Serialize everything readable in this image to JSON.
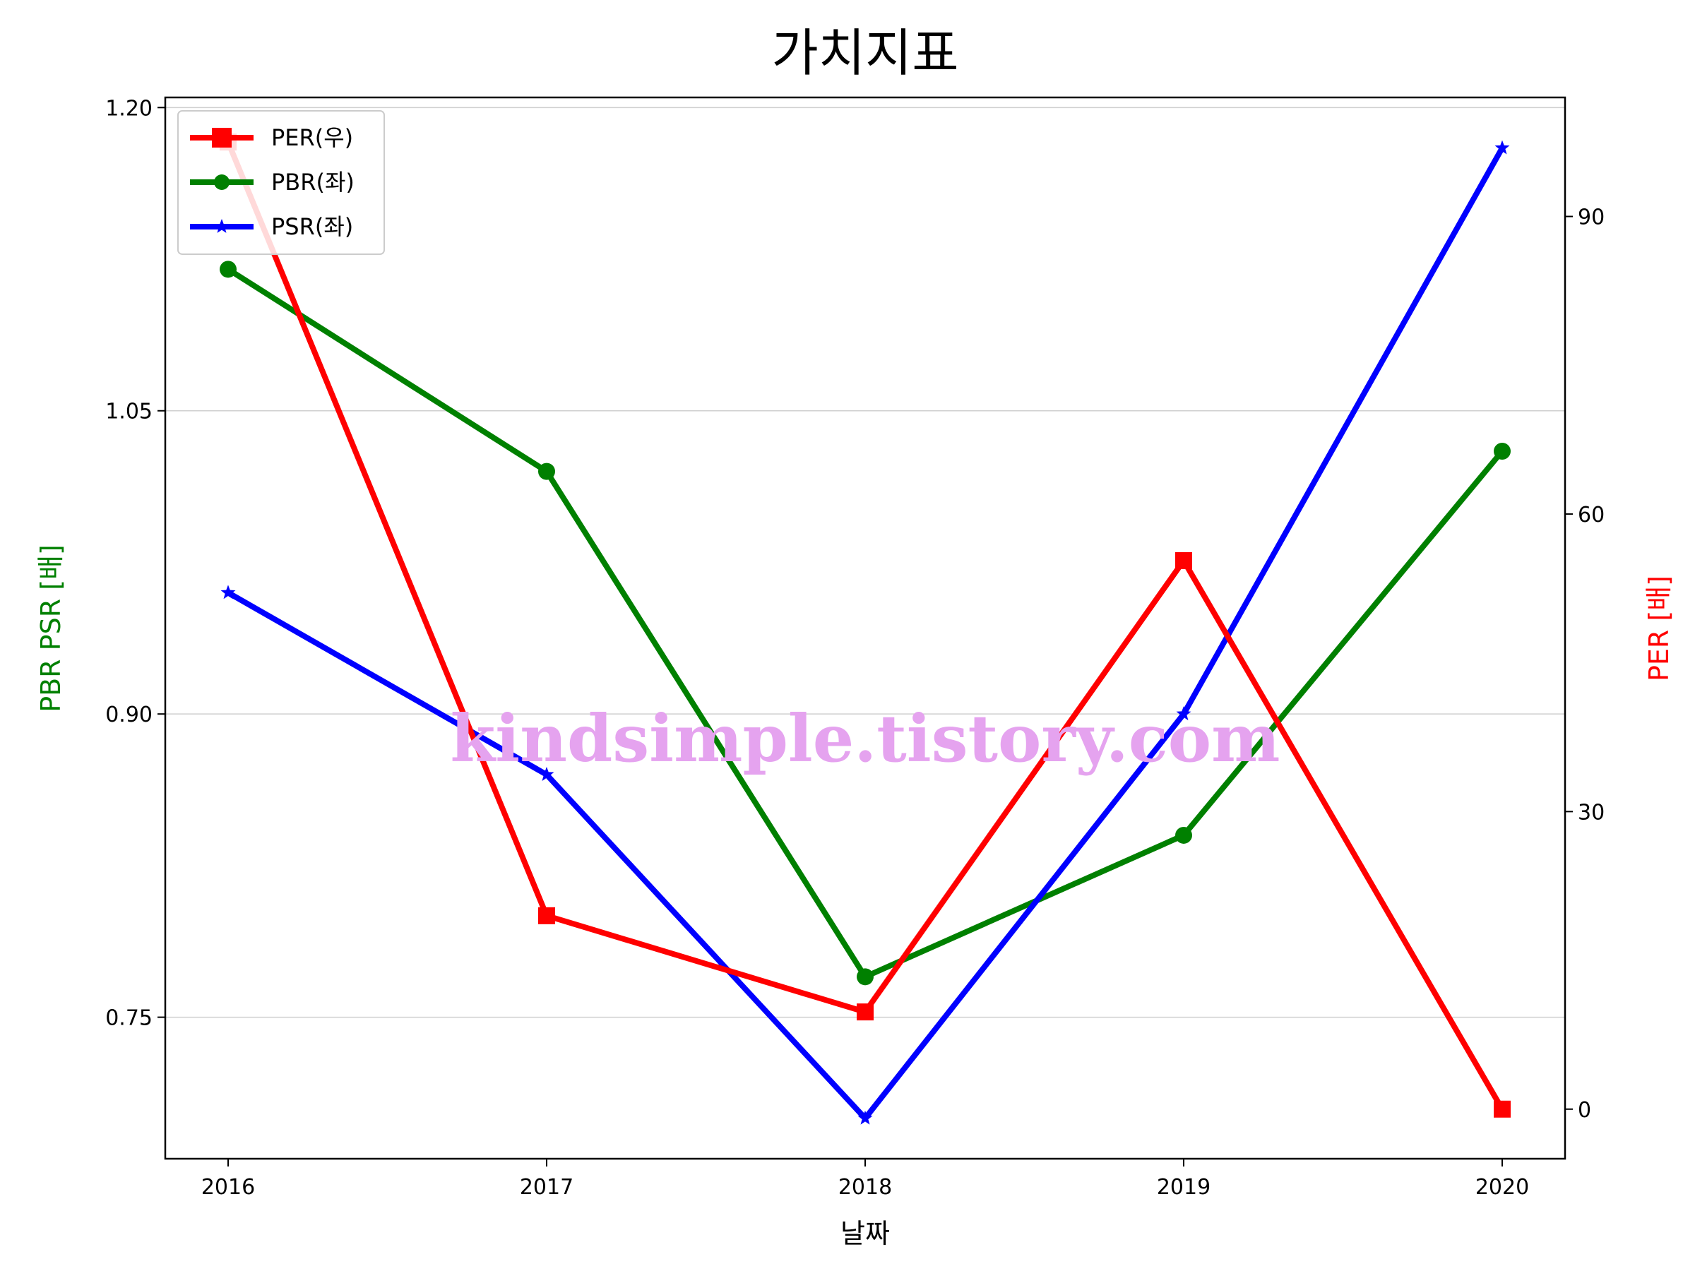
{
  "chart_data": {
    "type": "line",
    "title": "가치지표",
    "xlabel": "날짜",
    "ylabel_left": "PBR PSR [배]",
    "ylabel_right": "PER [배]",
    "categories": [
      "2016",
      "2017",
      "2018",
      "2019",
      "2020"
    ],
    "y_left_ticks": [
      "0.75",
      "0.90",
      "1.05",
      "1.20"
    ],
    "y_right_ticks": [
      "0",
      "30",
      "60",
      "90"
    ],
    "ylim_left": [
      0.68,
      1.205
    ],
    "ylim_right": [
      -5,
      102
    ],
    "grid": "horizontal",
    "legend_position": "top-left",
    "series": [
      {
        "name": "PER(우)",
        "axis": "right",
        "color": "#ff0000",
        "marker": "square",
        "values": [
          97.5,
          19.5,
          9.8,
          55.3,
          0
        ]
      },
      {
        "name": "PBR(좌)",
        "axis": "left",
        "color": "#008000",
        "marker": "circle",
        "values": [
          1.12,
          1.02,
          0.77,
          0.84,
          1.03
        ]
      },
      {
        "name": "PSR(좌)",
        "axis": "left",
        "color": "#0000ff",
        "marker": "star",
        "values": [
          0.96,
          0.87,
          0.7,
          0.9,
          1.18
        ]
      }
    ],
    "watermark": "kindsimple.tistory.com"
  }
}
